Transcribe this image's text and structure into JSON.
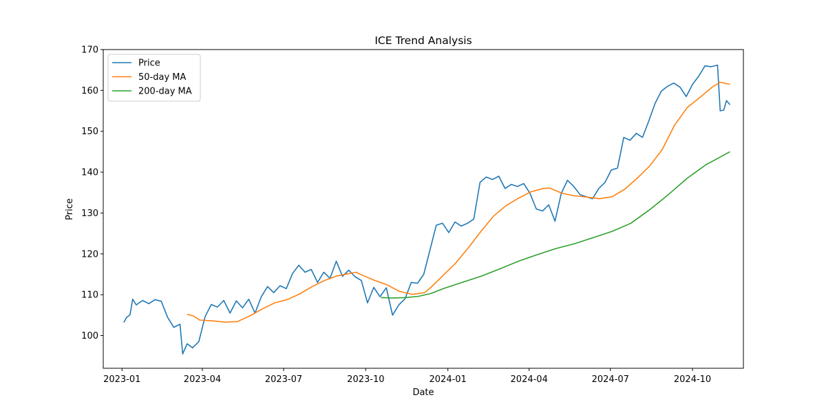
{
  "chart_data": {
    "type": "line",
    "title": "ICE Trend Analysis",
    "xlabel": "Date",
    "ylabel": "Price",
    "x_ticks": [
      "2023-01",
      "2023-04",
      "2023-07",
      "2023-10",
      "2024-01",
      "2024-04",
      "2024-07",
      "2024-10"
    ],
    "y_ticks": [
      100,
      110,
      120,
      130,
      140,
      150,
      160,
      170
    ],
    "xlim": [
      "2022-12-11",
      "2024-11-27"
    ],
    "ylim": [
      92,
      170
    ],
    "grid": false,
    "legend_position": "upper-left",
    "series": [
      {
        "name": "Price",
        "color": "#1f77b4",
        "points": [
          [
            "2023-01-03",
            103.2
          ],
          [
            "2023-01-06",
            104.4
          ],
          [
            "2023-01-10",
            105.1
          ],
          [
            "2023-01-13",
            108.9
          ],
          [
            "2023-01-17",
            107.5
          ],
          [
            "2023-01-24",
            108.6
          ],
          [
            "2023-01-31",
            107.8
          ],
          [
            "2023-02-07",
            108.8
          ],
          [
            "2023-02-14",
            108.4
          ],
          [
            "2023-02-21",
            104.5
          ],
          [
            "2023-02-28",
            102.0
          ],
          [
            "2023-03-07",
            102.8
          ],
          [
            "2023-03-10",
            95.5
          ],
          [
            "2023-03-15",
            98.0
          ],
          [
            "2023-03-21",
            97.0
          ],
          [
            "2023-03-28",
            98.5
          ],
          [
            "2023-04-04",
            104.6
          ],
          [
            "2023-04-11",
            107.6
          ],
          [
            "2023-04-18",
            107.0
          ],
          [
            "2023-04-25",
            108.6
          ],
          [
            "2023-05-02",
            105.5
          ],
          [
            "2023-05-09",
            108.5
          ],
          [
            "2023-05-16",
            106.8
          ],
          [
            "2023-05-23",
            108.9
          ],
          [
            "2023-05-30",
            105.5
          ],
          [
            "2023-06-06",
            109.5
          ],
          [
            "2023-06-13",
            112.0
          ],
          [
            "2023-06-20",
            110.5
          ],
          [
            "2023-06-27",
            112.2
          ],
          [
            "2023-07-04",
            111.5
          ],
          [
            "2023-07-11",
            115.2
          ],
          [
            "2023-07-18",
            117.2
          ],
          [
            "2023-07-25",
            115.5
          ],
          [
            "2023-08-01",
            116.2
          ],
          [
            "2023-08-08",
            113.0
          ],
          [
            "2023-08-15",
            115.5
          ],
          [
            "2023-08-22",
            114.0
          ],
          [
            "2023-08-29",
            118.2
          ],
          [
            "2023-09-05",
            114.5
          ],
          [
            "2023-09-12",
            116.0
          ],
          [
            "2023-09-19",
            114.4
          ],
          [
            "2023-09-26",
            113.5
          ],
          [
            "2023-10-03",
            108.0
          ],
          [
            "2023-10-10",
            111.8
          ],
          [
            "2023-10-17",
            109.5
          ],
          [
            "2023-10-24",
            111.7
          ],
          [
            "2023-10-31",
            105.0
          ],
          [
            "2023-11-07",
            107.5
          ],
          [
            "2023-11-14",
            109.0
          ],
          [
            "2023-11-21",
            113.0
          ],
          [
            "2023-11-28",
            112.8
          ],
          [
            "2023-12-05",
            115.0
          ],
          [
            "2023-12-12",
            121.0
          ],
          [
            "2023-12-19",
            127.0
          ],
          [
            "2023-12-26",
            127.5
          ],
          [
            "2024-01-02",
            125.2
          ],
          [
            "2024-01-09",
            127.8
          ],
          [
            "2024-01-16",
            126.8
          ],
          [
            "2024-01-23",
            127.5
          ],
          [
            "2024-01-30",
            128.5
          ],
          [
            "2024-02-06",
            137.5
          ],
          [
            "2024-02-13",
            138.8
          ],
          [
            "2024-02-20",
            138.2
          ],
          [
            "2024-02-27",
            139.0
          ],
          [
            "2024-03-05",
            136.0
          ],
          [
            "2024-03-12",
            137.0
          ],
          [
            "2024-03-19",
            136.5
          ],
          [
            "2024-03-26",
            137.2
          ],
          [
            "2024-04-02",
            134.8
          ],
          [
            "2024-04-09",
            131.0
          ],
          [
            "2024-04-16",
            130.5
          ],
          [
            "2024-04-23",
            132.0
          ],
          [
            "2024-04-30",
            128.0
          ],
          [
            "2024-05-07",
            134.8
          ],
          [
            "2024-05-14",
            138.0
          ],
          [
            "2024-05-21",
            136.5
          ],
          [
            "2024-05-28",
            134.5
          ],
          [
            "2024-06-04",
            134.0
          ],
          [
            "2024-06-11",
            133.5
          ],
          [
            "2024-06-18",
            136.0
          ],
          [
            "2024-06-25",
            137.5
          ],
          [
            "2024-07-02",
            140.5
          ],
          [
            "2024-07-09",
            141.0
          ],
          [
            "2024-07-16",
            148.5
          ],
          [
            "2024-07-23",
            147.8
          ],
          [
            "2024-07-30",
            149.5
          ],
          [
            "2024-08-06",
            148.5
          ],
          [
            "2024-08-13",
            152.5
          ],
          [
            "2024-08-20",
            156.8
          ],
          [
            "2024-08-27",
            159.8
          ],
          [
            "2024-09-03",
            161.0
          ],
          [
            "2024-09-10",
            161.8
          ],
          [
            "2024-09-17",
            160.8
          ],
          [
            "2024-09-24",
            158.5
          ],
          [
            "2024-10-01",
            161.5
          ],
          [
            "2024-10-08",
            163.5
          ],
          [
            "2024-10-15",
            166.0
          ],
          [
            "2024-10-22",
            165.8
          ],
          [
            "2024-10-29",
            166.2
          ],
          [
            "2024-11-01",
            155.0
          ],
          [
            "2024-11-05",
            155.2
          ],
          [
            "2024-11-08",
            157.5
          ],
          [
            "2024-11-12",
            156.5
          ]
        ]
      },
      {
        "name": "50-day MA",
        "color": "#ff7f0e",
        "points": [
          [
            "2023-03-15",
            105.2
          ],
          [
            "2023-03-22",
            104.8
          ],
          [
            "2023-03-29",
            103.8
          ],
          [
            "2023-04-12",
            103.6
          ],
          [
            "2023-04-26",
            103.3
          ],
          [
            "2023-05-10",
            103.4
          ],
          [
            "2023-05-24",
            104.8
          ],
          [
            "2023-06-07",
            106.5
          ],
          [
            "2023-06-21",
            108.0
          ],
          [
            "2023-07-05",
            108.8
          ],
          [
            "2023-07-19",
            110.2
          ],
          [
            "2023-08-02",
            112.0
          ],
          [
            "2023-08-16",
            113.5
          ],
          [
            "2023-08-30",
            114.6
          ],
          [
            "2023-09-13",
            115.2
          ],
          [
            "2023-09-20",
            115.5
          ],
          [
            "2023-09-27",
            114.8
          ],
          [
            "2023-10-11",
            113.5
          ],
          [
            "2023-10-25",
            112.4
          ],
          [
            "2023-11-08",
            110.8
          ],
          [
            "2023-11-22",
            110.1
          ],
          [
            "2023-12-06",
            110.5
          ],
          [
            "2023-12-13",
            111.8
          ],
          [
            "2023-12-27",
            114.8
          ],
          [
            "2024-01-10",
            117.8
          ],
          [
            "2024-01-24",
            121.5
          ],
          [
            "2024-02-07",
            125.5
          ],
          [
            "2024-02-21",
            129.2
          ],
          [
            "2024-03-06",
            131.8
          ],
          [
            "2024-03-20",
            133.6
          ],
          [
            "2024-04-03",
            135.2
          ],
          [
            "2024-04-17",
            136.0
          ],
          [
            "2024-04-24",
            136.1
          ],
          [
            "2024-05-08",
            134.8
          ],
          [
            "2024-05-22",
            134.2
          ],
          [
            "2024-06-05",
            133.9
          ],
          [
            "2024-06-19",
            133.5
          ],
          [
            "2024-07-03",
            134.0
          ],
          [
            "2024-07-17",
            135.8
          ],
          [
            "2024-07-31",
            138.5
          ],
          [
            "2024-08-14",
            141.5
          ],
          [
            "2024-08-28",
            145.5
          ],
          [
            "2024-09-11",
            151.5
          ],
          [
            "2024-09-25",
            155.8
          ],
          [
            "2024-10-09",
            158.2
          ],
          [
            "2024-10-23",
            160.8
          ],
          [
            "2024-11-01",
            162.0
          ],
          [
            "2024-11-12",
            161.5
          ]
        ]
      },
      {
        "name": "200-day MA",
        "color": "#2ca02c",
        "points": [
          [
            "2023-10-18",
            109.3
          ],
          [
            "2023-11-01",
            109.2
          ],
          [
            "2023-11-15",
            109.3
          ],
          [
            "2023-11-29",
            109.6
          ],
          [
            "2023-12-13",
            110.3
          ],
          [
            "2023-12-27",
            111.5
          ],
          [
            "2024-01-17",
            113.0
          ],
          [
            "2024-02-07",
            114.5
          ],
          [
            "2024-02-28",
            116.3
          ],
          [
            "2024-03-20",
            118.2
          ],
          [
            "2024-04-10",
            119.8
          ],
          [
            "2024-05-01",
            121.3
          ],
          [
            "2024-05-22",
            122.5
          ],
          [
            "2024-06-12",
            124.0
          ],
          [
            "2024-07-03",
            125.5
          ],
          [
            "2024-07-24",
            127.5
          ],
          [
            "2024-08-14",
            130.8
          ],
          [
            "2024-09-04",
            134.5
          ],
          [
            "2024-09-25",
            138.5
          ],
          [
            "2024-10-16",
            141.8
          ],
          [
            "2024-11-12",
            145.0
          ]
        ]
      }
    ]
  }
}
